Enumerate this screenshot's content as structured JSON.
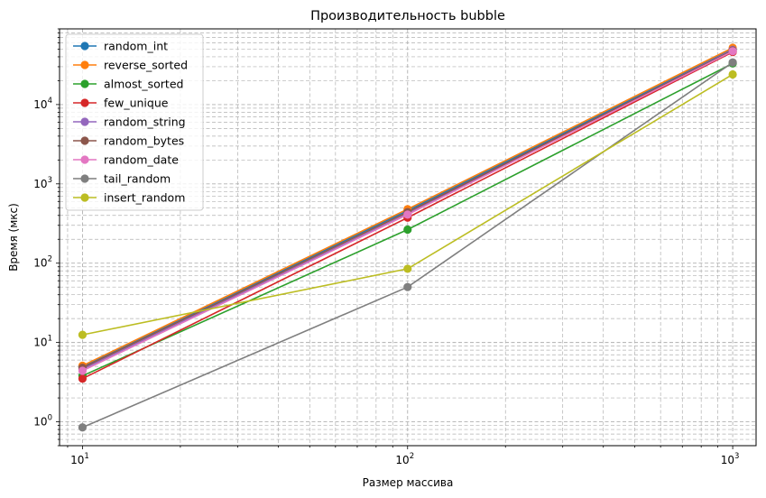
{
  "chart_data": {
    "type": "line",
    "title": "Производительность bubble",
    "xlabel": "Размер массива",
    "ylabel": "Время (мкс)",
    "xscale": "log",
    "yscale": "log",
    "x": [
      10,
      100,
      1000
    ],
    "xlim": [
      8.5,
      1180
    ],
    "ylim": [
      0.5,
      90000
    ],
    "grid": "both, dashed",
    "legend_position": "top-left",
    "x_ticks": [
      {
        "value": 10,
        "base": "10",
        "exp": "1"
      },
      {
        "value": 100,
        "base": "10",
        "exp": "2"
      },
      {
        "value": 1000,
        "base": "10",
        "exp": "3"
      }
    ],
    "y_ticks": [
      {
        "value": 1,
        "base": "10",
        "exp": "0"
      },
      {
        "value": 10,
        "base": "10",
        "exp": "1"
      },
      {
        "value": 100,
        "base": "10",
        "exp": "2"
      },
      {
        "value": 1000,
        "base": "10",
        "exp": "3"
      },
      {
        "value": 10000,
        "base": "10",
        "exp": "4"
      }
    ],
    "series": [
      {
        "name": "random_int",
        "color": "#1f77b4",
        "values": [
          5.0,
          460,
          50000
        ]
      },
      {
        "name": "reverse_sorted",
        "color": "#ff7f0e",
        "values": [
          5.1,
          480,
          52000
        ]
      },
      {
        "name": "almost_sorted",
        "color": "#2ca02c",
        "values": [
          3.8,
          265,
          33000
        ]
      },
      {
        "name": "few_unique",
        "color": "#d62728",
        "values": [
          3.5,
          375,
          46000
        ]
      },
      {
        "name": "random_string",
        "color": "#9467bd",
        "values": [
          4.6,
          420,
          49000
        ]
      },
      {
        "name": "random_bytes",
        "color": "#8c564b",
        "values": [
          4.8,
          440,
          48000
        ]
      },
      {
        "name": "random_date",
        "color": "#e377c2",
        "values": [
          4.4,
          410,
          47000
        ]
      },
      {
        "name": "tail_random",
        "color": "#7f7f7f",
        "values": [
          0.85,
          50,
          34000
        ]
      },
      {
        "name": "insert_random",
        "color": "#bcbd22",
        "values": [
          12.5,
          85,
          24000
        ]
      }
    ]
  }
}
